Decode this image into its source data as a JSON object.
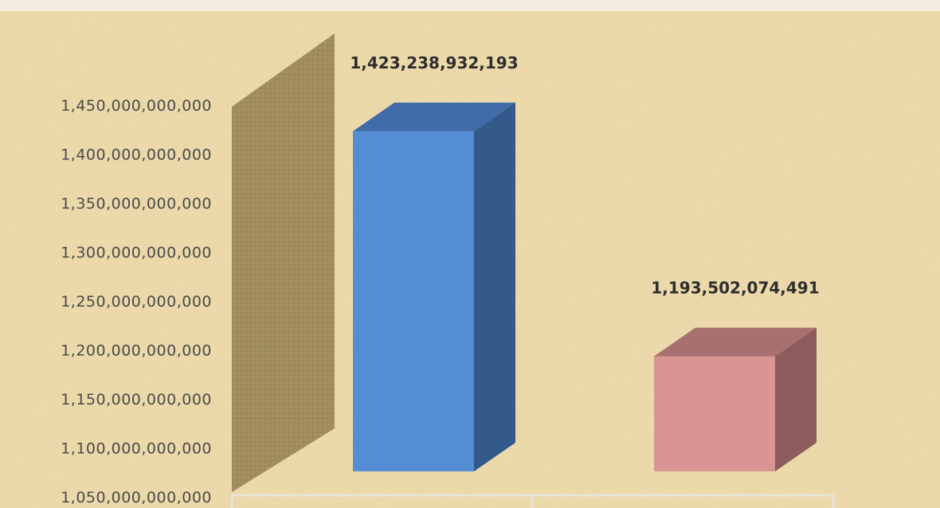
{
  "chart_data": {
    "type": "bar",
    "categories": [
      "",
      ""
    ],
    "values": [
      1423238932193,
      1193502074491
    ],
    "data_labels": [
      "1,423,238,932,193",
      "1,193,502,074,491"
    ],
    "colors": [
      "#548dd4",
      "#d99594"
    ],
    "side_colors": [
      "#345a8c",
      "#8c5d5c"
    ],
    "top_colors": [
      "#3f6ba8",
      "#a87071"
    ],
    "ylim": [
      1050000000000,
      1450000000000
    ],
    "yticks": [
      1050000000000,
      1100000000000,
      1150000000000,
      1200000000000,
      1250000000000,
      1300000000000,
      1350000000000,
      1400000000000,
      1450000000000
    ],
    "ytick_labels": [
      "1,050,000,000,000",
      "1,100,000,000,000",
      "1,150,000,000,000",
      "1,200,000,000,000",
      "1,250,000,000,000",
      "1,300,000,000,000",
      "1,350,000,000,000",
      "1,400,000,000,000",
      "1,450,000,000,000"
    ],
    "title": "",
    "xlabel": "",
    "ylabel": "",
    "grid": false,
    "legend": "none",
    "style": "3d-column",
    "background": "papyrus-texture"
  }
}
